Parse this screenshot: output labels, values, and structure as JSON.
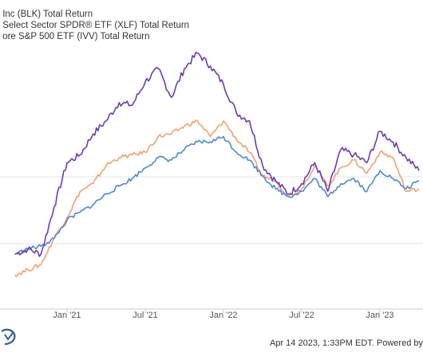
{
  "legend": [
    {
      "label": "Inc (BLK) Total Return",
      "color": "#6a3bbf"
    },
    {
      "label": "Select Sector SPDR® ETF (XLF) Total Return",
      "color": "#f5a06a"
    },
    {
      "label": "ore S&P 500 ETF (IVV) Total Return",
      "color": "#4a8ad6"
    }
  ],
  "footer": {
    "text": "Apr 14 2023, 1:33PM EDT.  Powered by"
  },
  "logo": {
    "icon": "ycharts-logo-icon"
  },
  "chart_data": {
    "type": "line",
    "title": "",
    "xlabel": "",
    "ylabel": "",
    "x_ticks": [
      "Jan '21",
      "Jul '21",
      "Jan '22",
      "Jul '22",
      "Jan '23"
    ],
    "x": [
      "2020-09",
      "2020-10",
      "2020-11",
      "2020-12",
      "2021-01",
      "2021-02",
      "2021-03",
      "2021-04",
      "2021-05",
      "2021-06",
      "2021-07",
      "2021-08",
      "2021-09",
      "2021-10",
      "2021-11",
      "2021-12",
      "2022-01",
      "2022-02",
      "2022-03",
      "2022-04",
      "2022-05",
      "2022-06",
      "2022-07",
      "2022-08",
      "2022-09",
      "2022-10",
      "2022-11",
      "2022-12",
      "2023-01",
      "2023-02",
      "2023-03",
      "2023-04"
    ],
    "ylim": [
      0,
      100
    ],
    "grid": true,
    "series": [
      {
        "name": "Inc (BLK) Total Return",
        "color": "#6a3bbf",
        "values": [
          21,
          23,
          21,
          39,
          56,
          59,
          67,
          72,
          79,
          78,
          87,
          92,
          81,
          92,
          98,
          93,
          86,
          75,
          72,
          55,
          49,
          44,
          48,
          56,
          45,
          61,
          59,
          56,
          68,
          64,
          58,
          53
        ]
      },
      {
        "name": "Select Sector SPDR® ETF (XLF) Total Return",
        "color": "#f5a06a",
        "values": [
          13,
          15,
          17,
          27,
          35,
          45,
          48,
          55,
          58,
          59,
          60,
          66,
          67,
          70,
          72,
          66,
          72,
          65,
          60,
          51,
          49,
          43,
          46,
          55,
          47,
          54,
          57,
          52,
          60,
          58,
          45,
          46
        ]
      },
      {
        "name": "ore S&P 500 ETF (IVV) Total Return",
        "color": "#4a8ad6",
        "values": [
          21,
          23,
          24,
          27,
          34,
          37,
          40,
          44,
          47,
          50,
          54,
          58,
          57,
          61,
          64,
          64,
          66,
          60,
          57,
          51,
          46,
          43,
          45,
          50,
          43,
          48,
          50,
          45,
          53,
          50,
          46,
          49
        ]
      }
    ]
  }
}
